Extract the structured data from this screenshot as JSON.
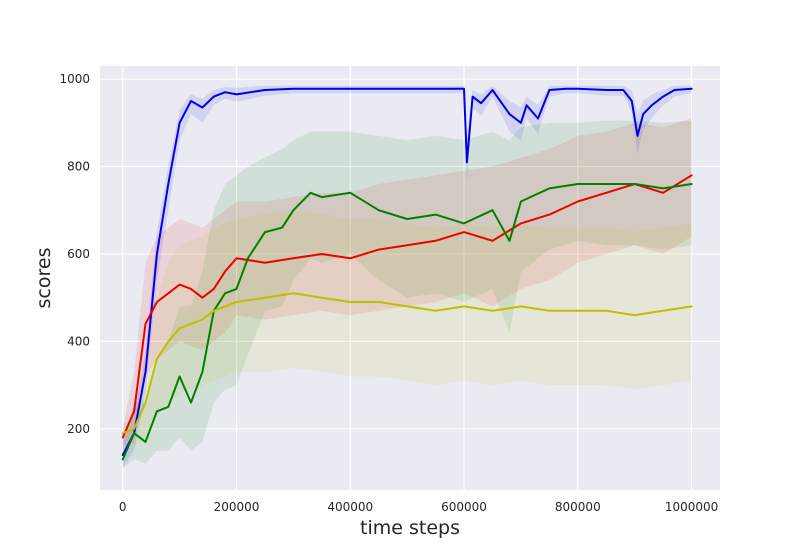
{
  "chart_data": {
    "type": "line",
    "title": "",
    "xlabel": "time steps",
    "ylabel": "scores",
    "xlim": [
      -40000,
      1050000
    ],
    "ylim": [
      60,
      1030
    ],
    "grid": true,
    "background_color": "#EAEAF2",
    "x_ticks": [
      0,
      200000,
      400000,
      600000,
      800000,
      1000000
    ],
    "x_tick_labels": [
      "0",
      "200000",
      "400000",
      "600000",
      "800000",
      "1000000"
    ],
    "y_ticks": [
      200,
      400,
      600,
      800,
      1000
    ],
    "y_tick_labels": [
      "200",
      "400",
      "600",
      "800",
      "1000"
    ],
    "series": [
      {
        "color": "#0000ee",
        "x": [
          0,
          20000,
          40000,
          60000,
          80000,
          100000,
          120000,
          140000,
          160000,
          180000,
          200000,
          250000,
          300000,
          350000,
          400000,
          450000,
          500000,
          550000,
          580000,
          600000,
          605000,
          615000,
          630000,
          650000,
          680000,
          700000,
          710000,
          730000,
          750000,
          780000,
          800000,
          850000,
          880000,
          895000,
          905000,
          915000,
          930000,
          950000,
          970000,
          1000000
        ],
        "y": [
          140,
          190,
          330,
          600,
          760,
          900,
          950,
          935,
          960,
          970,
          965,
          975,
          978,
          978,
          978,
          978,
          978,
          978,
          978,
          978,
          810,
          960,
          945,
          975,
          920,
          900,
          940,
          910,
          975,
          978,
          978,
          975,
          975,
          950,
          870,
          920,
          940,
          960,
          975,
          978
        ],
        "band_upper": [
          175,
          230,
          380,
          650,
          800,
          930,
          965,
          955,
          975,
          982,
          980,
          985,
          985,
          985,
          985,
          985,
          985,
          985,
          985,
          985,
          870,
          975,
          965,
          985,
          950,
          935,
          960,
          940,
          985,
          985,
          985,
          985,
          985,
          975,
          920,
          950,
          965,
          975,
          985,
          985
        ],
        "band_lower": [
          110,
          150,
          280,
          540,
          700,
          860,
          920,
          900,
          940,
          955,
          948,
          962,
          968,
          968,
          968,
          968,
          968,
          968,
          968,
          968,
          760,
          935,
          915,
          960,
          880,
          860,
          910,
          875,
          960,
          968,
          968,
          962,
          962,
          925,
          830,
          885,
          910,
          940,
          960,
          968
        ]
      },
      {
        "color": "#ee0000",
        "x": [
          0,
          20000,
          40000,
          60000,
          80000,
          100000,
          120000,
          140000,
          160000,
          180000,
          200000,
          250000,
          300000,
          350000,
          400000,
          450000,
          500000,
          550000,
          600000,
          650000,
          700000,
          750000,
          800000,
          850000,
          900000,
          950000,
          1000000
        ],
        "y": [
          180,
          240,
          440,
          490,
          510,
          530,
          520,
          500,
          520,
          560,
          590,
          580,
          590,
          600,
          590,
          610,
          620,
          630,
          650,
          630,
          670,
          690,
          720,
          740,
          760,
          740,
          780
        ],
        "band_upper": [
          200,
          330,
          580,
          640,
          660,
          680,
          670,
          660,
          680,
          700,
          720,
          720,
          730,
          740,
          740,
          760,
          770,
          780,
          790,
          800,
          820,
          840,
          870,
          880,
          900,
          890,
          910
        ],
        "band_lower": [
          160,
          170,
          320,
          360,
          380,
          400,
          390,
          380,
          400,
          420,
          460,
          450,
          460,
          470,
          460,
          470,
          480,
          490,
          510,
          480,
          520,
          540,
          580,
          600,
          620,
          600,
          640
        ]
      },
      {
        "color": "#008000",
        "x": [
          0,
          20000,
          40000,
          60000,
          80000,
          100000,
          120000,
          140000,
          160000,
          180000,
          200000,
          220000,
          250000,
          280000,
          300000,
          330000,
          350000,
          400000,
          450000,
          500000,
          550000,
          600000,
          650000,
          680000,
          700000,
          750000,
          800000,
          850000,
          900000,
          950000,
          1000000
        ],
        "y": [
          130,
          190,
          170,
          240,
          250,
          320,
          260,
          330,
          470,
          510,
          520,
          590,
          650,
          660,
          700,
          740,
          730,
          740,
          700,
          680,
          690,
          670,
          700,
          630,
          720,
          750,
          760,
          760,
          760,
          750,
          760
        ],
        "band_upper": [
          160,
          260,
          260,
          360,
          400,
          480,
          480,
          560,
          700,
          760,
          780,
          800,
          820,
          840,
          860,
          880,
          880,
          880,
          870,
          860,
          870,
          860,
          880,
          860,
          890,
          900,
          900,
          905,
          905,
          900,
          905
        ],
        "band_lower": [
          110,
          130,
          120,
          150,
          150,
          180,
          150,
          170,
          260,
          290,
          300,
          370,
          470,
          480,
          540,
          590,
          580,
          600,
          540,
          500,
          510,
          490,
          520,
          420,
          560,
          610,
          630,
          620,
          620,
          610,
          620
        ]
      },
      {
        "color": "#bfbf00",
        "x": [
          0,
          20000,
          40000,
          60000,
          80000,
          100000,
          120000,
          140000,
          160000,
          180000,
          200000,
          250000,
          300000,
          350000,
          400000,
          450000,
          500000,
          550000,
          600000,
          650000,
          700000,
          750000,
          800000,
          850000,
          900000,
          950000,
          1000000
        ],
        "y": [
          190,
          200,
          260,
          360,
          400,
          430,
          440,
          450,
          470,
          480,
          490,
          500,
          510,
          500,
          490,
          490,
          480,
          470,
          480,
          470,
          480,
          470,
          470,
          470,
          460,
          470,
          480
        ],
        "band_upper": [
          205,
          250,
          360,
          500,
          580,
          620,
          630,
          640,
          660,
          670,
          680,
          690,
          700,
          690,
          680,
          680,
          670,
          660,
          670,
          660,
          670,
          660,
          660,
          660,
          650,
          660,
          670
        ],
        "band_lower": [
          175,
          160,
          180,
          230,
          260,
          280,
          290,
          300,
          310,
          320,
          330,
          330,
          340,
          330,
          320,
          320,
          310,
          300,
          310,
          300,
          310,
          300,
          300,
          300,
          290,
          300,
          310
        ]
      }
    ]
  }
}
